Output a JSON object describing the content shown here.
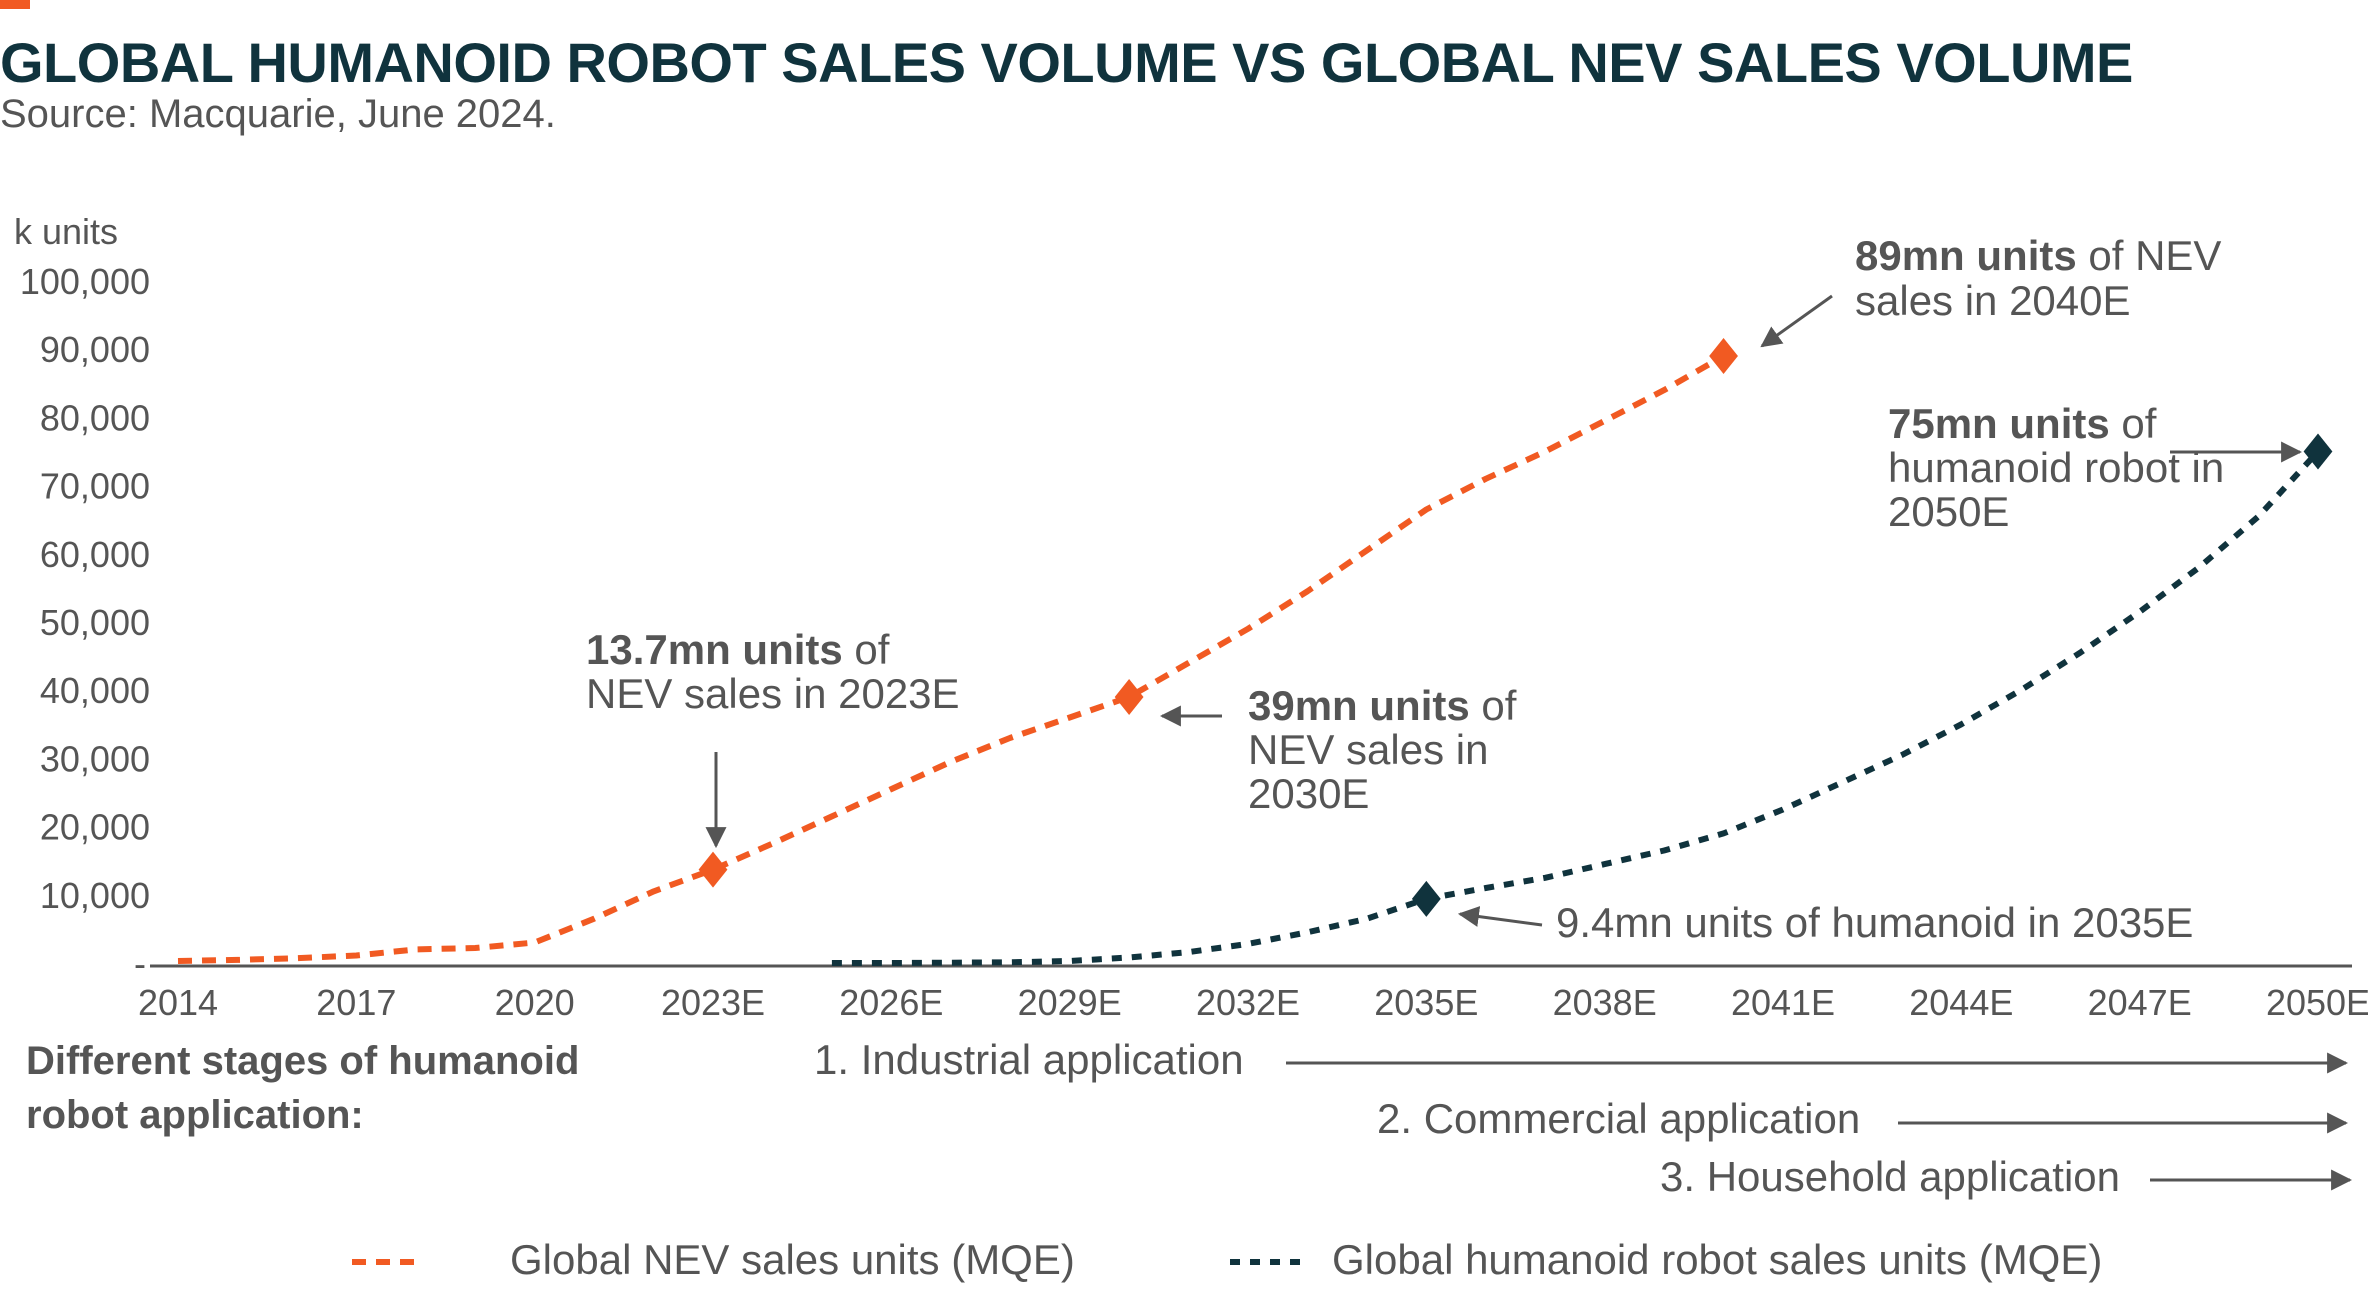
{
  "title": "GLOBAL HUMANOID ROBOT SALES VOLUME VS GLOBAL NEV SALES VOLUME",
  "subtitle": "Source: Macquarie, June 2024.",
  "colors": {
    "nev": "#f15a22",
    "robot": "#10333d",
    "title": "#10333d",
    "text": "#555555"
  },
  "chart_data": {
    "type": "line",
    "ylabel": "k units",
    "ylim": [
      0,
      100000
    ],
    "yticks": [
      {
        "value": 0,
        "label": "-"
      },
      {
        "value": 10000,
        "label": "10,000"
      },
      {
        "value": 20000,
        "label": "20,000"
      },
      {
        "value": 30000,
        "label": "30,000"
      },
      {
        "value": 40000,
        "label": "40,000"
      },
      {
        "value": 50000,
        "label": "50,000"
      },
      {
        "value": 60000,
        "label": "60,000"
      },
      {
        "value": 70000,
        "label": "70,000"
      },
      {
        "value": 80000,
        "label": "80,000"
      },
      {
        "value": 90000,
        "label": "90,000"
      },
      {
        "value": 100000,
        "label": "100,000"
      }
    ],
    "xlim": [
      2014,
      2050
    ],
    "xticks": [
      {
        "value": 2014,
        "label": "2014"
      },
      {
        "value": 2017,
        "label": "2017"
      },
      {
        "value": 2020,
        "label": "2020"
      },
      {
        "value": 2023,
        "label": "2023E"
      },
      {
        "value": 2026,
        "label": "2026E"
      },
      {
        "value": 2029,
        "label": "2029E"
      },
      {
        "value": 2032,
        "label": "2032E"
      },
      {
        "value": 2035,
        "label": "2035E"
      },
      {
        "value": 2038,
        "label": "2038E"
      },
      {
        "value": 2041,
        "label": "2041E"
      },
      {
        "value": 2044,
        "label": "2044E"
      },
      {
        "value": 2047,
        "label": "2047E"
      },
      {
        "value": 2050,
        "label": "2050E"
      }
    ],
    "series": [
      {
        "name": "Global NEV sales units (MQE)",
        "color": "#f15a22",
        "style": "dashed",
        "x": [
          2014,
          2015,
          2016,
          2017,
          2018,
          2019,
          2020,
          2021,
          2022,
          2023,
          2024,
          2025,
          2026,
          2027,
          2028,
          2029,
          2030,
          2031,
          2032,
          2033,
          2034,
          2035,
          2036,
          2037,
          2038,
          2039,
          2040
        ],
        "values": [
          300,
          450,
          700,
          1100,
          2000,
          2200,
          3000,
          6500,
          10500,
          13700,
          17500,
          21500,
          25500,
          29500,
          33000,
          36000,
          39000,
          44000,
          49000,
          54500,
          60500,
          66500,
          71000,
          75000,
          79500,
          84000,
          89000
        ]
      },
      {
        "name": "Global humanoid robot sales units (MQE)",
        "color": "#10333d",
        "style": "dotted",
        "x": [
          2025,
          2026,
          2027,
          2028,
          2029,
          2030,
          2031,
          2032,
          2033,
          2034,
          2035,
          2036,
          2037,
          2038,
          2039,
          2040,
          2041,
          2042,
          2043,
          2044,
          2045,
          2046,
          2047,
          2048,
          2049,
          2050
        ],
        "values": [
          0,
          0,
          50,
          100,
          300,
          800,
          1600,
          2800,
          4500,
          6500,
          9400,
          11000,
          12500,
          14500,
          16500,
          19000,
          22500,
          26500,
          30500,
          35000,
          40000,
          45500,
          51500,
          58000,
          65500,
          75000
        ]
      }
    ],
    "markers": [
      {
        "series": 0,
        "x": 2023,
        "y": 13700
      },
      {
        "series": 0,
        "x": 2030,
        "y": 39000
      },
      {
        "series": 0,
        "x": 2040,
        "y": 89000
      },
      {
        "series": 1,
        "x": 2035,
        "y": 9400
      },
      {
        "series": 1,
        "x": 2050,
        "y": 75000
      }
    ],
    "annotations": [
      {
        "bold": "13.7mn units",
        "rest": " of",
        "line2": "NEV sales in 2023E",
        "line3": ""
      },
      {
        "bold": "39mn units",
        "rest": " of",
        "line2": "NEV sales in",
        "line3": "2030E"
      },
      {
        "bold": "89mn units",
        "rest": " of NEV",
        "line2": "sales in 2040E",
        "line3": ""
      },
      {
        "bold": "75mn units",
        "rest": " of",
        "line2": "humanoid robot in",
        "line3": "2050E"
      },
      {
        "bold": "",
        "rest": "9.4mn units of humanoid in 2035E",
        "line2": "",
        "line3": ""
      }
    ],
    "grid": false,
    "legend_position": "bottom"
  },
  "stages": {
    "heading_line1": "Different stages of humanoid",
    "heading_line2": "robot application:",
    "items": [
      "1. Industrial application",
      "2. Commercial application",
      "3. Household application"
    ]
  }
}
